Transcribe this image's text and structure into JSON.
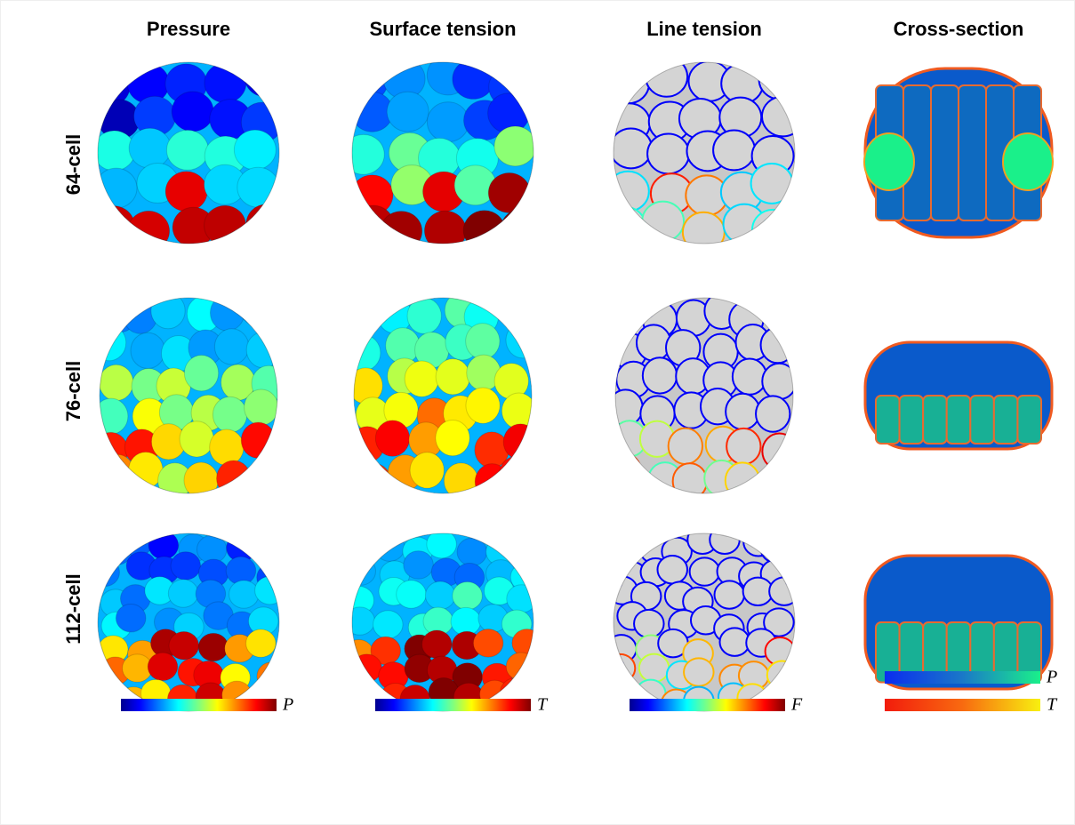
{
  "column_headers": [
    "Pressure",
    "Surface tension",
    "Line tension",
    "Cross-section"
  ],
  "row_labels": [
    "64-cell",
    "76-cell",
    "112-cell"
  ],
  "colorbar_labels": [
    "P",
    "T",
    "F",
    "P",
    "T"
  ]
}
